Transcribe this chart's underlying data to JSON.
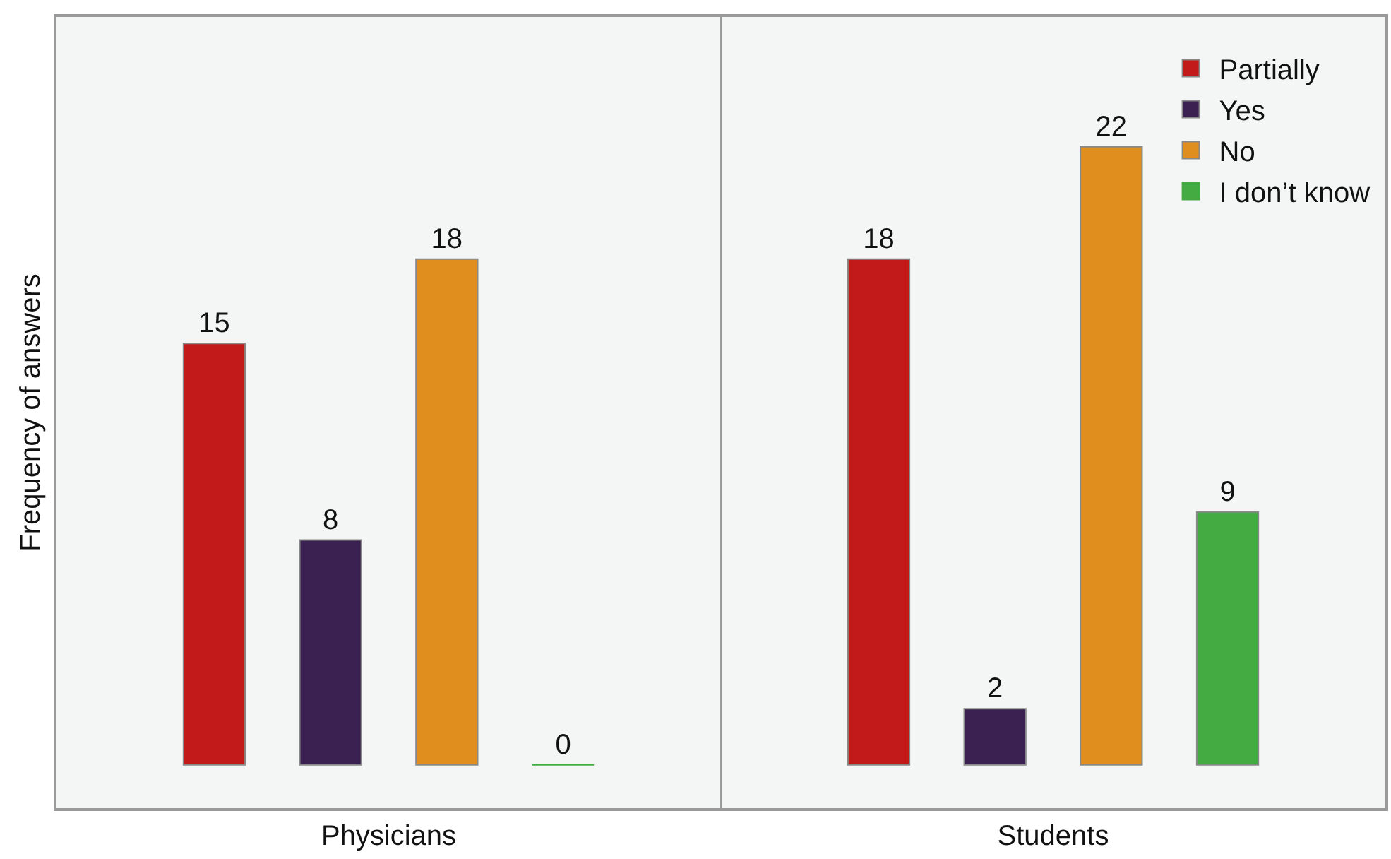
{
  "chart_data": {
    "type": "bar",
    "ylabel": "Frequency of answers",
    "categories": [
      "Physicians",
      "Students"
    ],
    "series": [
      {
        "name": "Partially",
        "color": "#c2191b",
        "values": [
          15,
          18
        ]
      },
      {
        "name": "Yes",
        "color": "#3a2152",
        "values": [
          8,
          2
        ]
      },
      {
        "name": "No",
        "color": "#e08e1e",
        "values": [
          18,
          22
        ]
      },
      {
        "name": "I don’t know",
        "color": "#43ab41",
        "values": [
          0,
          9
        ]
      }
    ],
    "data_labels": true,
    "tick_labels": "x",
    "grid": false,
    "legend": "top right"
  }
}
